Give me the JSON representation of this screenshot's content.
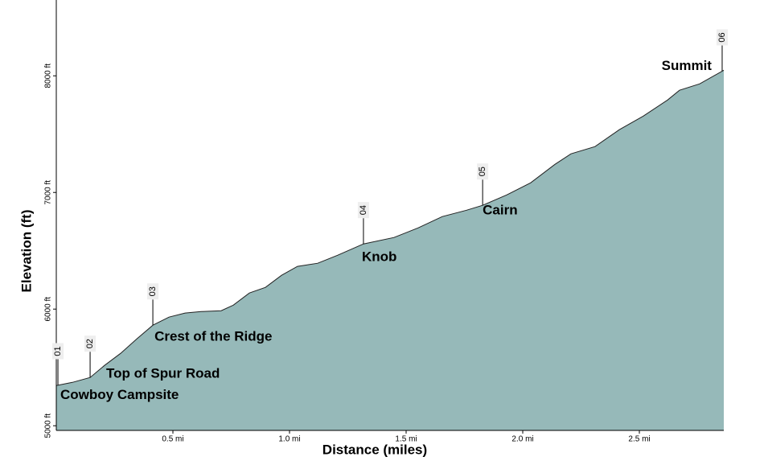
{
  "chart_data": {
    "type": "area",
    "x_label": "Distance (miles)",
    "y_label": "Elevation (ft)",
    "x": [
      0,
      0.069,
      0.145,
      0.207,
      0.276,
      0.345,
      0.414,
      0.483,
      0.552,
      0.621,
      0.707,
      0.759,
      0.828,
      0.897,
      0.966,
      1.034,
      1.121,
      1.207,
      1.317,
      1.448,
      1.552,
      1.655,
      1.759,
      1.828,
      1.931,
      2.034,
      2.138,
      2.207,
      2.31,
      2.414,
      2.517,
      2.621,
      2.672,
      2.759,
      2.862
    ],
    "series": [
      {
        "name": "Elevation",
        "color": "#96b9b9",
        "values": [
          5345,
          5372,
          5414,
          5517,
          5621,
          5745,
          5862,
          5931,
          5966,
          5979,
          5986,
          6034,
          6138,
          6186,
          6290,
          6366,
          6393,
          6462,
          6559,
          6614,
          6697,
          6793,
          6848,
          6890,
          6979,
          7083,
          7241,
          7331,
          7393,
          7538,
          7655,
          7793,
          7876,
          7931,
          8048
        ]
      }
    ],
    "xlim": [
      0,
      2.862
    ],
    "ylim": [
      4960,
      8650
    ],
    "xticks": [
      {
        "value": 0.5,
        "label": "0.5 mi"
      },
      {
        "value": 1.0,
        "label": "1.0 mi"
      },
      {
        "value": 1.5,
        "label": "1.5 mi"
      },
      {
        "value": 2.0,
        "label": "2.0 mi"
      },
      {
        "value": 2.5,
        "label": "2.5 mi"
      }
    ],
    "yticks": [
      {
        "value": 5000,
        "label": "5000 ft"
      },
      {
        "value": 6000,
        "label": "6000 ft"
      },
      {
        "value": 7000,
        "label": "7000 ft"
      },
      {
        "value": 8000,
        "label": "8000 ft"
      }
    ],
    "waypoints": [
      {
        "id": "01",
        "name": "Cowboy Campsite",
        "x": 0.007,
        "y": 5350
      },
      {
        "id": "02",
        "name": "Top of Spur Road",
        "x": 0.145,
        "y": 5414
      },
      {
        "id": "03",
        "name": "Crest of the Ridge",
        "x": 0.414,
        "y": 5862
      },
      {
        "id": "04",
        "name": "Knob",
        "x": 1.317,
        "y": 6559
      },
      {
        "id": "05",
        "name": "Cairn",
        "x": 1.828,
        "y": 6890
      },
      {
        "id": "06",
        "name": "Summit",
        "x": 2.855,
        "y": 8040
      }
    ]
  }
}
